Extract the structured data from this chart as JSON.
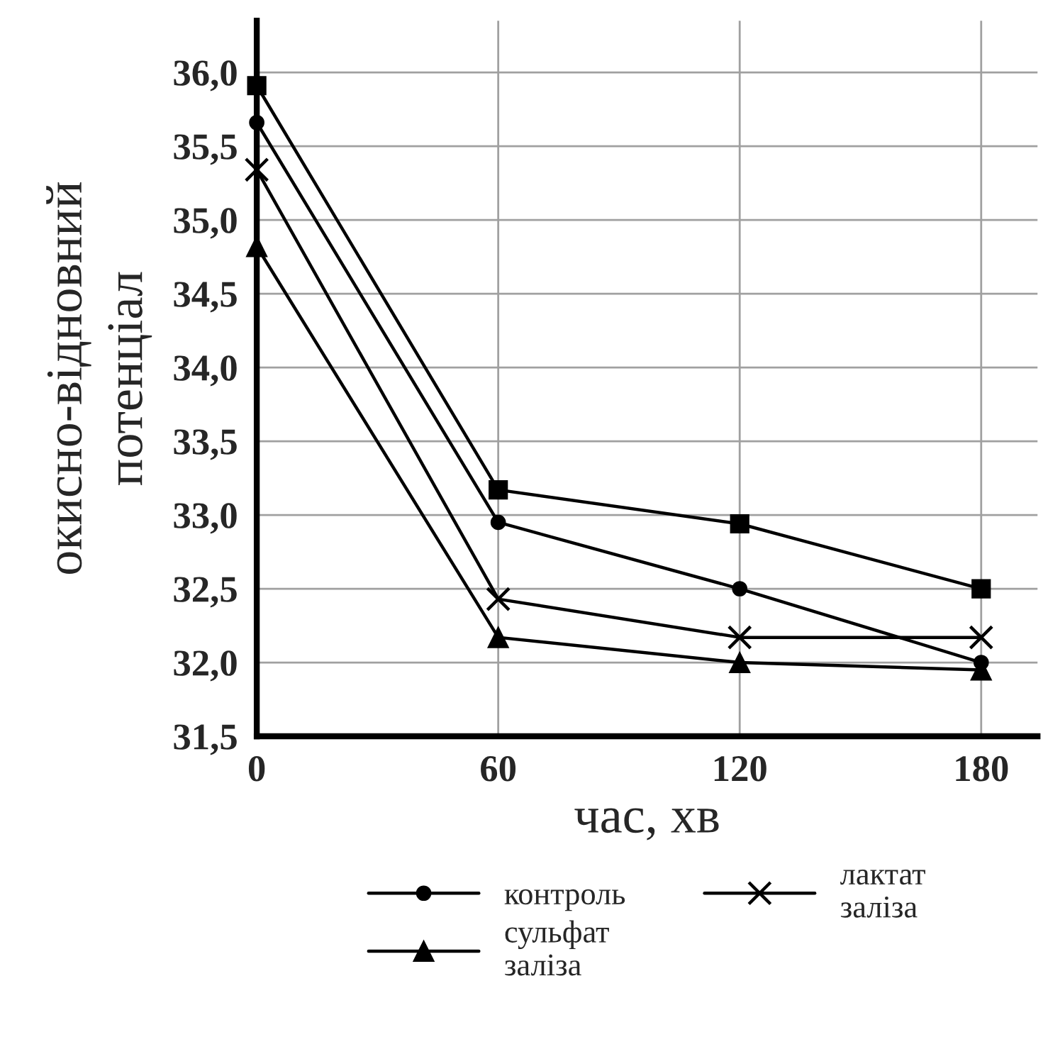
{
  "chart_data": {
    "type": "line",
    "xlabel": "час, хв",
    "ylabel": "окисно-відновний\nпотенціал",
    "x": [
      0,
      60,
      120,
      180
    ],
    "series": [
      {
        "name": "контроль",
        "color": "#000000",
        "marker": "circle",
        "values": [
          35.66,
          32.95,
          32.5,
          32.0
        ]
      },
      {
        "color": "#000000",
        "marker": "square",
        "values": [
          35.91,
          33.17,
          32.94,
          32.5
        ]
      },
      {
        "name": "сульфат\nзаліза",
        "color": "#000000",
        "marker": "triangle",
        "values": [
          34.82,
          32.17,
          32.0,
          31.95
        ]
      },
      {
        "name": "лактат\nзаліза",
        "color": "#000000",
        "marker": "cross",
        "values": [
          35.34,
          32.43,
          32.17,
          32.17
        ]
      }
    ],
    "xlim": [
      0,
      194
    ],
    "xticks": [
      0,
      60,
      120,
      180
    ],
    "ylim": [
      31.5,
      36.35
    ],
    "yticks": [
      {
        "value": 31.5,
        "label": "31,5"
      },
      {
        "value": 32.0,
        "label": "32,0"
      },
      {
        "value": 32.5,
        "label": "32,5"
      },
      {
        "value": 33.0,
        "label": "33,0"
      },
      {
        "value": 33.5,
        "label": "33,5"
      },
      {
        "value": 34.0,
        "label": "34,0"
      },
      {
        "value": 34.5,
        "label": "34,5"
      },
      {
        "value": 35.0,
        "label": "35,0"
      },
      {
        "value": 35.5,
        "label": "35,5"
      },
      {
        "value": 36.0,
        "label": "36,0"
      }
    ],
    "grid": true,
    "legend": "bottom",
    "line_style": "solid"
  }
}
